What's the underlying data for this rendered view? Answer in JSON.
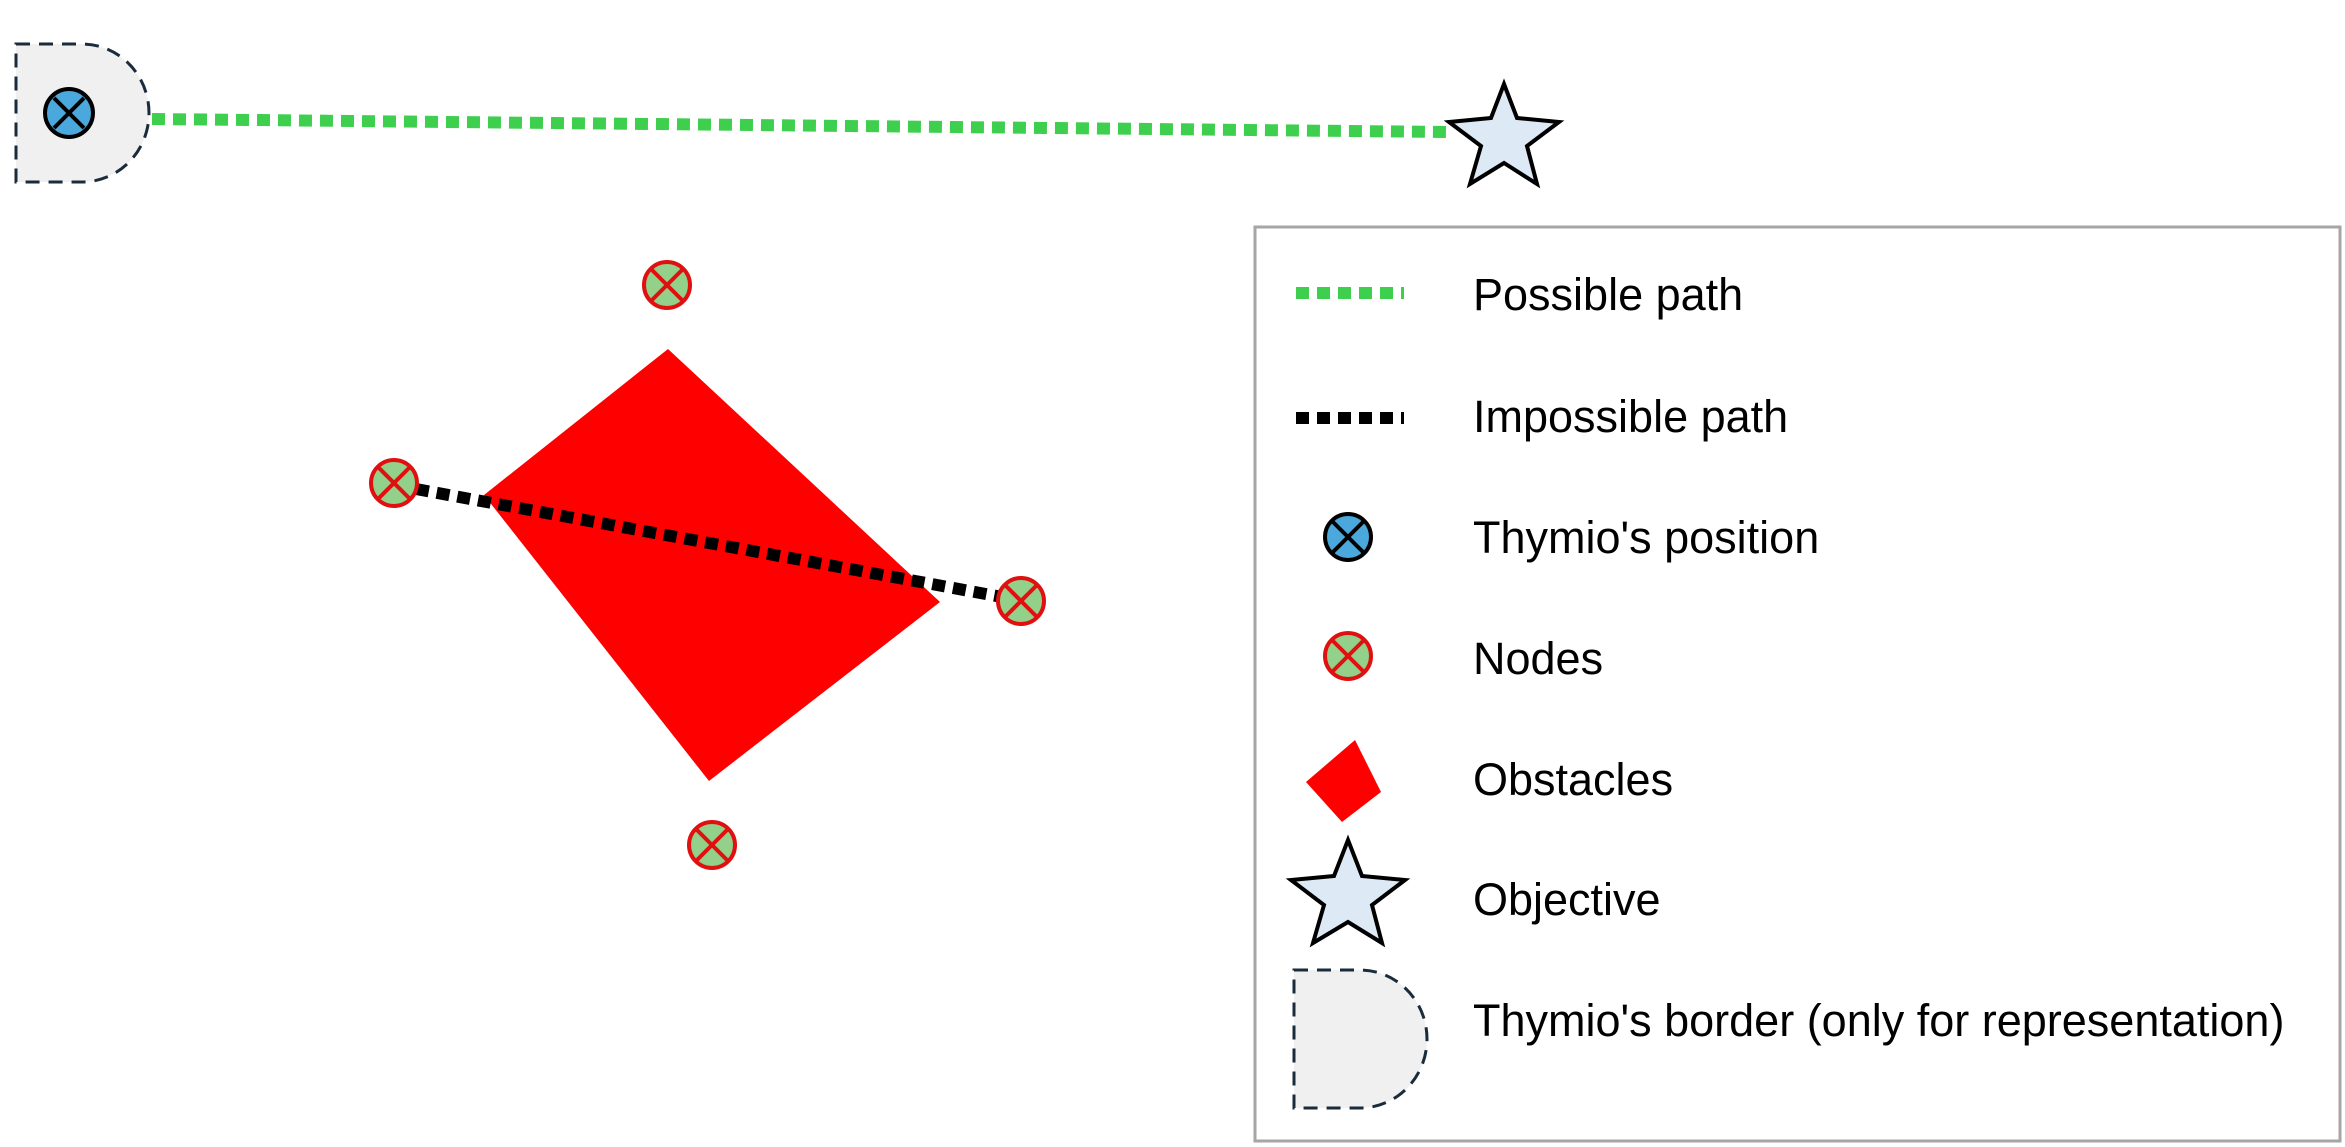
{
  "colors": {
    "possible_path": "#3fcf4f",
    "impossible_path": "#000000",
    "obstacle": "#ff0000",
    "node_fill": "#93d08a",
    "node_stroke": "#e01010",
    "thymio_fill": "#4aa8dc",
    "objective_fill": "#dde9f5",
    "border_fill": "#f0f0f0",
    "border_stroke": "#1a2b3c",
    "legend_frame": "#a6a6a6"
  },
  "legend": {
    "items": [
      {
        "key": "possible_path",
        "label": "Possible path",
        "icon": "green-dotted-line-icon"
      },
      {
        "key": "impossible_path",
        "label": "Impossible path",
        "icon": "black-dotted-line-icon"
      },
      {
        "key": "thymio_position",
        "label": "Thymio's position",
        "icon": "blue-cross-circle-icon"
      },
      {
        "key": "nodes",
        "label": "Nodes",
        "icon": "green-cross-circle-icon"
      },
      {
        "key": "obstacles",
        "label": "Obstacles",
        "icon": "red-polygon-icon"
      },
      {
        "key": "objective",
        "label": "Objective",
        "icon": "star-icon"
      },
      {
        "key": "thymio_border",
        "label": "Thymio's border (only for representation)",
        "icon": "d-shape-dashed-icon"
      }
    ]
  }
}
